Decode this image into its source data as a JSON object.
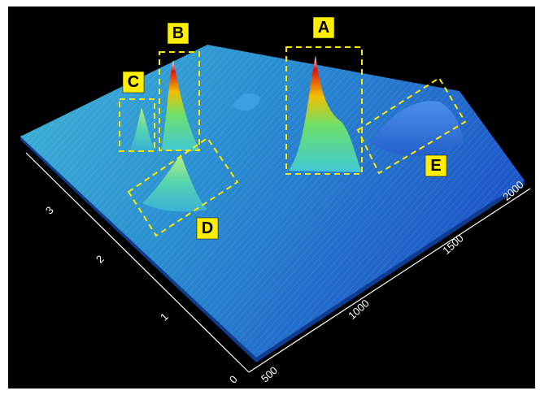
{
  "labels": [
    "A",
    "B",
    "C",
    "D",
    "E"
  ],
  "x_axis": {
    "ticks": [
      "500",
      "1000",
      "1500",
      "2000"
    ]
  },
  "y_axis": {
    "ticks": [
      "0",
      "1",
      "2",
      "3"
    ]
  }
}
